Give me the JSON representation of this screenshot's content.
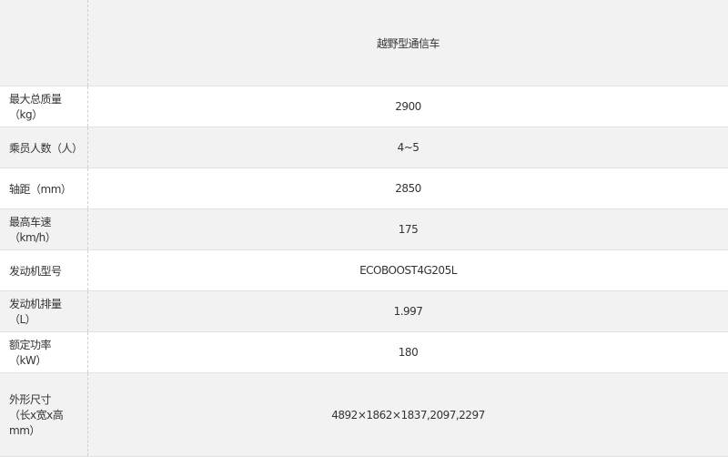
{
  "table": {
    "header": "越野型通信车",
    "rows": [
      {
        "label": [
          "最大总质量（kg）"
        ],
        "value": "2900"
      },
      {
        "label": [
          "乘员人数（人）"
        ],
        "value": "4~5"
      },
      {
        "label": [
          "轴距（mm）"
        ],
        "value": "2850"
      },
      {
        "label": [
          "最高车速（km/h）"
        ],
        "value": "175"
      },
      {
        "label": [
          "发动机型号"
        ],
        "value": "ECOBOOST4G205L"
      },
      {
        "label": [
          "发动机排量（L）"
        ],
        "value": "1.997"
      },
      {
        "label": [
          "额定功率（kW）"
        ],
        "value": "180"
      },
      {
        "label": [
          "外形尺寸",
          "（长x宽x高mm）"
        ],
        "value": "4892×1862×1837,2097,2297"
      }
    ]
  }
}
